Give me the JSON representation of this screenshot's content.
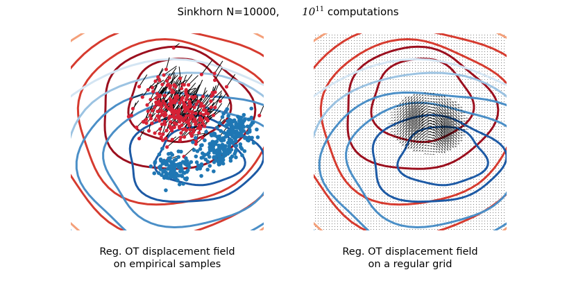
{
  "title": {
    "prefix": "Sinkhorn N=10000,",
    "math_base": "10",
    "math_exp": "11",
    "suffix": "computations"
  },
  "panels": [
    {
      "line1": "Reg. OT displacement field",
      "line2": "on empirical samples"
    },
    {
      "line1": "Reg. OT displacement field",
      "line2": "on a regular grid"
    }
  ],
  "colors": {
    "red_dark": "#9b0f1e",
    "red_mid": "#d63b2f",
    "red_light": "#f4a07a",
    "red_pale": "#fbd0bc",
    "blue_dark": "#1d5aa5",
    "blue_mid": "#4b8fc7",
    "blue_light": "#9cc3e2",
    "blue_pale": "#d4e5f3",
    "arrow": "#000000",
    "source_point": "#d62236",
    "target_point": "#1f77b4",
    "grid_dot": "#333333"
  },
  "icons": {
    "source": "red-dot-icon",
    "target": "blue-dot-icon",
    "arrow": "arrow-icon"
  }
}
